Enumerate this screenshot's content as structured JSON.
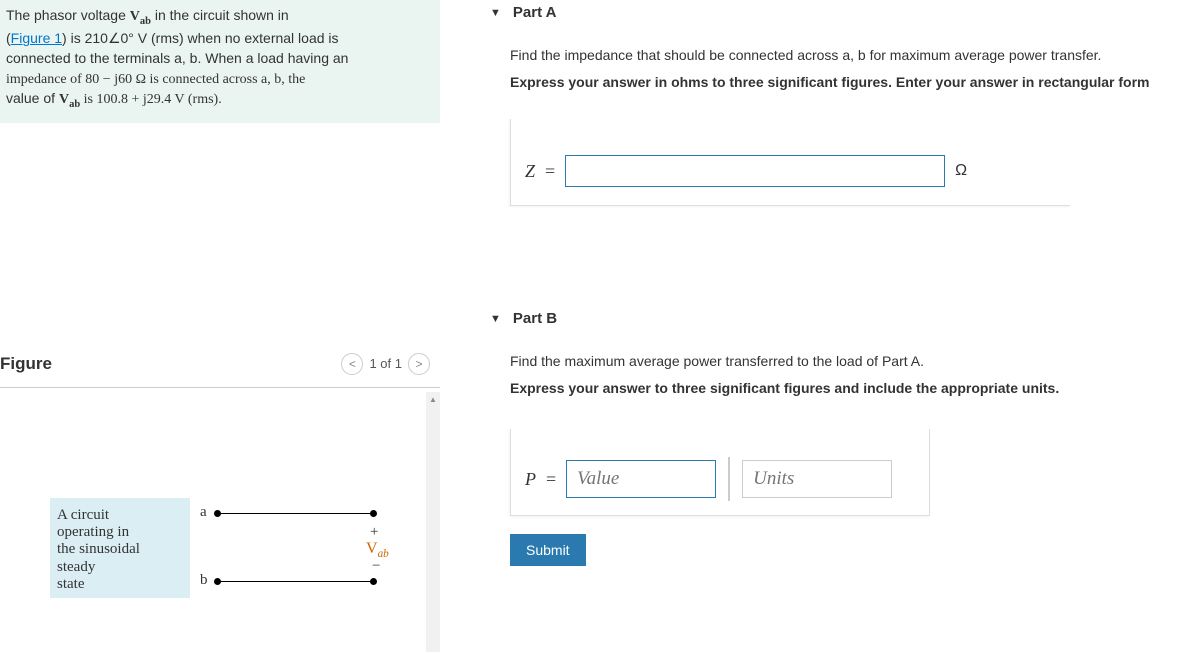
{
  "problem": {
    "line1_a": "The phasor voltage ",
    "vab": "V",
    "vab_sub": "ab",
    "line1_b": " in the circuit shown in",
    "line2_a": "(",
    "figlink": "Figure 1",
    "line2_b": ") is 210∠0° V (rms) when no external load is",
    "line3": "connected to the terminals a, b. When a load having an",
    "line4": "impedance of 80 − j60 Ω is connected across a, b, the",
    "line5_a": "value of ",
    "line5_b": " is 100.8 + j29.4 V (rms)."
  },
  "figure": {
    "title": "Figure",
    "pager": "1 of 1",
    "box_l1": "A circuit",
    "box_l2": "operating in",
    "box_l3": "the sinusoidal",
    "box_l4": "steady",
    "box_l5": "state",
    "a": "a",
    "b": "b",
    "plus": "+",
    "minus": "−",
    "vab_big": "V",
    "vab_sub": "ab"
  },
  "partA": {
    "title": "Part A",
    "inst1": "Find the impedance that should be connected across a, b for maximum average power transfer.",
    "inst2": "Express your answer in ohms to three significant figures. Enter your answer in rectangular form",
    "zlabel": "Z",
    "eq": "=",
    "unit": "Ω"
  },
  "partB": {
    "title": "Part B",
    "inst1": "Find the maximum average power transferred to the load of Part A.",
    "inst2": "Express your answer to three significant figures and include the appropriate units.",
    "plabel": "P",
    "eq": "=",
    "value_ph": "Value",
    "units_ph": "Units",
    "submit": "Submit"
  }
}
